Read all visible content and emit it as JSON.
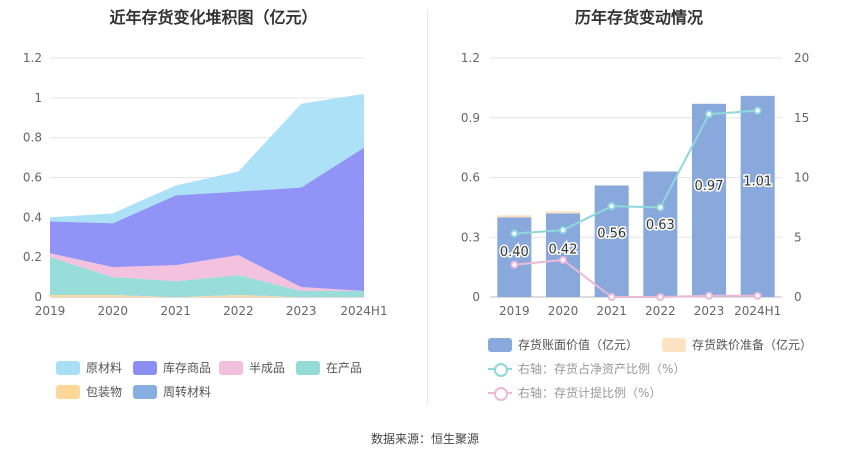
{
  "footer": {
    "source": "数据来源：恒生聚源"
  },
  "chart_data": [
    {
      "type": "area",
      "stacked": true,
      "title": "近年存货变化堆积图（亿元）",
      "categories": [
        "2019",
        "2020",
        "2021",
        "2022",
        "2023",
        "2024H1"
      ],
      "yticks": [
        "0",
        "0.2",
        "0.4",
        "0.6",
        "0.8",
        "1",
        "1.2"
      ],
      "ylim": [
        0,
        1.2
      ],
      "legend_position": "bottom",
      "series": [
        {
          "name": "原材料",
          "color": "#a8dff7",
          "values": [
            0.02,
            0.05,
            0.05,
            0.1,
            0.42,
            0.27
          ]
        },
        {
          "name": "库存商品",
          "color": "#8b8ef5",
          "values": [
            0.16,
            0.22,
            0.35,
            0.32,
            0.5,
            0.72
          ]
        },
        {
          "name": "半成品",
          "color": "#f2bfdc",
          "values": [
            0.02,
            0.05,
            0.08,
            0.1,
            0.02,
            0.0
          ]
        },
        {
          "name": "在产品",
          "color": "#94dbd8",
          "values": [
            0.19,
            0.09,
            0.08,
            0.1,
            0.03,
            0.03
          ]
        },
        {
          "name": "包装物",
          "color": "#fbd89a",
          "values": [
            0.01,
            0.01,
            0.0,
            0.01,
            0.0,
            0.0
          ]
        },
        {
          "name": "周转材料",
          "color": "#86aee0",
          "values": [
            0.0,
            0.0,
            0.0,
            0.0,
            0.0,
            0.0
          ]
        }
      ]
    },
    {
      "type": "bar",
      "title": "历年存货变动情况",
      "categories": [
        "2019",
        "2020",
        "2021",
        "2022",
        "2023",
        "2024H1"
      ],
      "yticks_left": [
        "0",
        "0.3",
        "0.6",
        "0.9",
        "1.2"
      ],
      "ylim_left": [
        0,
        1.2
      ],
      "yticks_right": [
        "0",
        "5",
        "10",
        "15",
        "20"
      ],
      "ylim_right": [
        0,
        20
      ],
      "legend_position": "bottom",
      "series": [
        {
          "name": "存货账面价值（亿元）",
          "type": "bar",
          "axis": "left",
          "color": "#89a9dc",
          "values": [
            0.4,
            0.42,
            0.56,
            0.63,
            0.97,
            1.01
          ],
          "labels": [
            "0.40",
            "0.42",
            "0.56",
            "0.63",
            "0.97",
            "1.01"
          ]
        },
        {
          "name": "存货跌价准备（亿元）",
          "type": "bar",
          "axis": "left",
          "color": "#fbe3c2",
          "values": [
            0.01,
            0.01,
            0.0,
            0.0,
            0.0,
            0.0
          ]
        },
        {
          "name": "右轴：存货占净资产比例（%）",
          "type": "line",
          "axis": "right",
          "color": "#8ed8dc",
          "values": [
            5.3,
            5.6,
            7.6,
            7.5,
            15.3,
            15.6
          ]
        },
        {
          "name": "右轴：存货计提比例（%）",
          "type": "line",
          "axis": "right",
          "color": "#eab9d8",
          "values": [
            2.7,
            3.1,
            0.0,
            0.0,
            0.1,
            0.1
          ]
        }
      ]
    }
  ]
}
